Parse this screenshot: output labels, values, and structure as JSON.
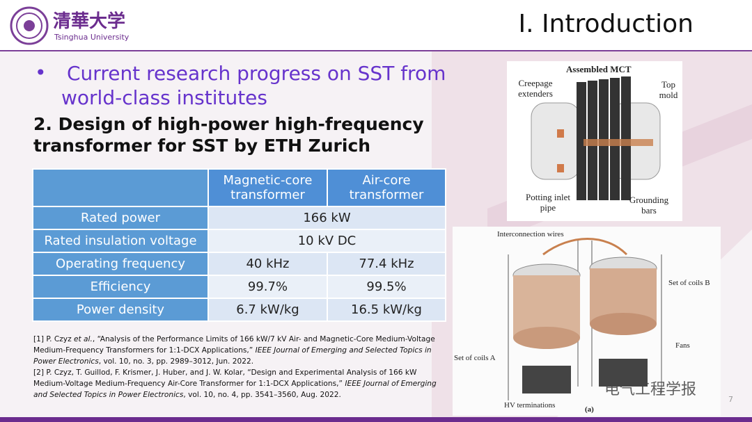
{
  "header": {
    "logo_cn": "清華大学",
    "logo_en": "Tsinghua University",
    "title": "I. Introduction"
  },
  "bullet": "Current research progress on SST from world-class institutes",
  "subtitle": "2. Design of high-power high-frequency transformer for SST by ETH Zurich",
  "table": {
    "header": [
      "Magnetic-core transformer",
      "Air-core transformer"
    ],
    "rows": [
      [
        "Rated power",
        "166 kW"
      ],
      [
        "Rated insulation voltage",
        "10 kV DC"
      ],
      [
        "Operating frequency",
        "40 kHz",
        "77.4 kHz"
      ],
      [
        "Efficiency",
        "99.7%",
        "99.5%"
      ],
      [
        "Power density",
        "6.7 kW/kg",
        "16.5 kW/kg"
      ]
    ]
  },
  "references": [
    [
      "[1] P. Czyz ",
      "et al.",
      ", “Analysis of the Performance Limits of 166 kW/7 kV Air- and Magnetic-Core Medium-Voltage Medium-Frequency Transformers for 1:1-DCX Applications,” ",
      "IEEE Journal of Emerging and Selected Topics in Power Electronics",
      ", vol. 10, no. 3, pp. 2989–3012, Jun. 2022."
    ],
    [
      "[2] P. Czyz, T. Guillod, F. Krismer, J. Huber, and J. W. Kolar, “Design and Experimental Analysis of 166 kW Medium-Voltage Medium-Frequency Air-Core Transformer for 1:1-DCX Applications,” ",
      "IEEE Journal of Emerging and Selected Topics in Power Electronics",
      ", vol. 10, no. 4, pp. 3541–3560, Aug. 2022."
    ]
  ],
  "figure1": {
    "title": "Assembled MCT",
    "labels": [
      "Creepage extenders",
      "Top mold",
      "Potting inlet pipe",
      "Grounding bars"
    ]
  },
  "figure2": {
    "labels": [
      "Interconnection wires",
      "Set of coils B",
      "Fans",
      "Set of coils A",
      "HV terminations",
      "(a)"
    ]
  },
  "watermark": "电气工程学报",
  "page_number": "7"
}
